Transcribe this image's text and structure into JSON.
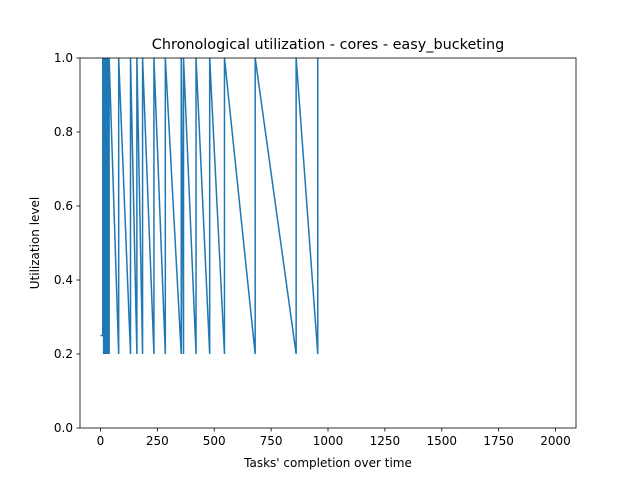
{
  "chart_data": {
    "type": "line",
    "title": "Chronological utilization - cores - easy_bucketing",
    "xlabel": "Tasks' completion over time",
    "ylabel": "Utilization level",
    "xlim": [
      -90,
      2090
    ],
    "ylim": [
      0.0,
      1.0
    ],
    "xticks": [
      0,
      250,
      500,
      750,
      1000,
      1250,
      1500,
      1750,
      2000
    ],
    "xtick_labels": [
      "0",
      "250",
      "500",
      "750",
      "1000",
      "1250",
      "1500",
      "1750",
      "2000"
    ],
    "yticks": [
      0.0,
      0.2,
      0.4,
      0.6,
      0.8,
      1.0
    ],
    "ytick_labels": [
      "0.0",
      "0.2",
      "0.4",
      "0.6",
      "0.8",
      "1.0"
    ],
    "grid": false,
    "color": "#1f77b4",
    "series": [
      {
        "x": [
          0,
          10,
          10,
          14,
          14,
          18,
          18,
          22,
          22,
          26,
          26,
          32,
          32,
          38,
          38,
          80,
          80,
          132,
          132,
          160,
          160,
          185,
          185,
          235,
          235,
          285,
          285,
          355,
          355,
          365,
          365,
          420,
          420,
          480,
          480,
          545,
          545,
          680,
          680,
          860,
          860,
          955,
          955
        ],
        "y": [
          0.25,
          0.25,
          1.0,
          0.2,
          1.0,
          0.2,
          1.0,
          0.2,
          1.0,
          0.2,
          1.0,
          0.2,
          1.0,
          0.2,
          1.0,
          0.2,
          1.0,
          0.2,
          1.0,
          0.2,
          1.0,
          0.2,
          1.0,
          0.2,
          1.0,
          0.2,
          1.0,
          0.2,
          1.0,
          0.2,
          1.0,
          0.2,
          1.0,
          0.2,
          1.0,
          0.2,
          1.0,
          0.2,
          1.0,
          0.2,
          1.0,
          0.2,
          1.0
        ]
      }
    ]
  }
}
